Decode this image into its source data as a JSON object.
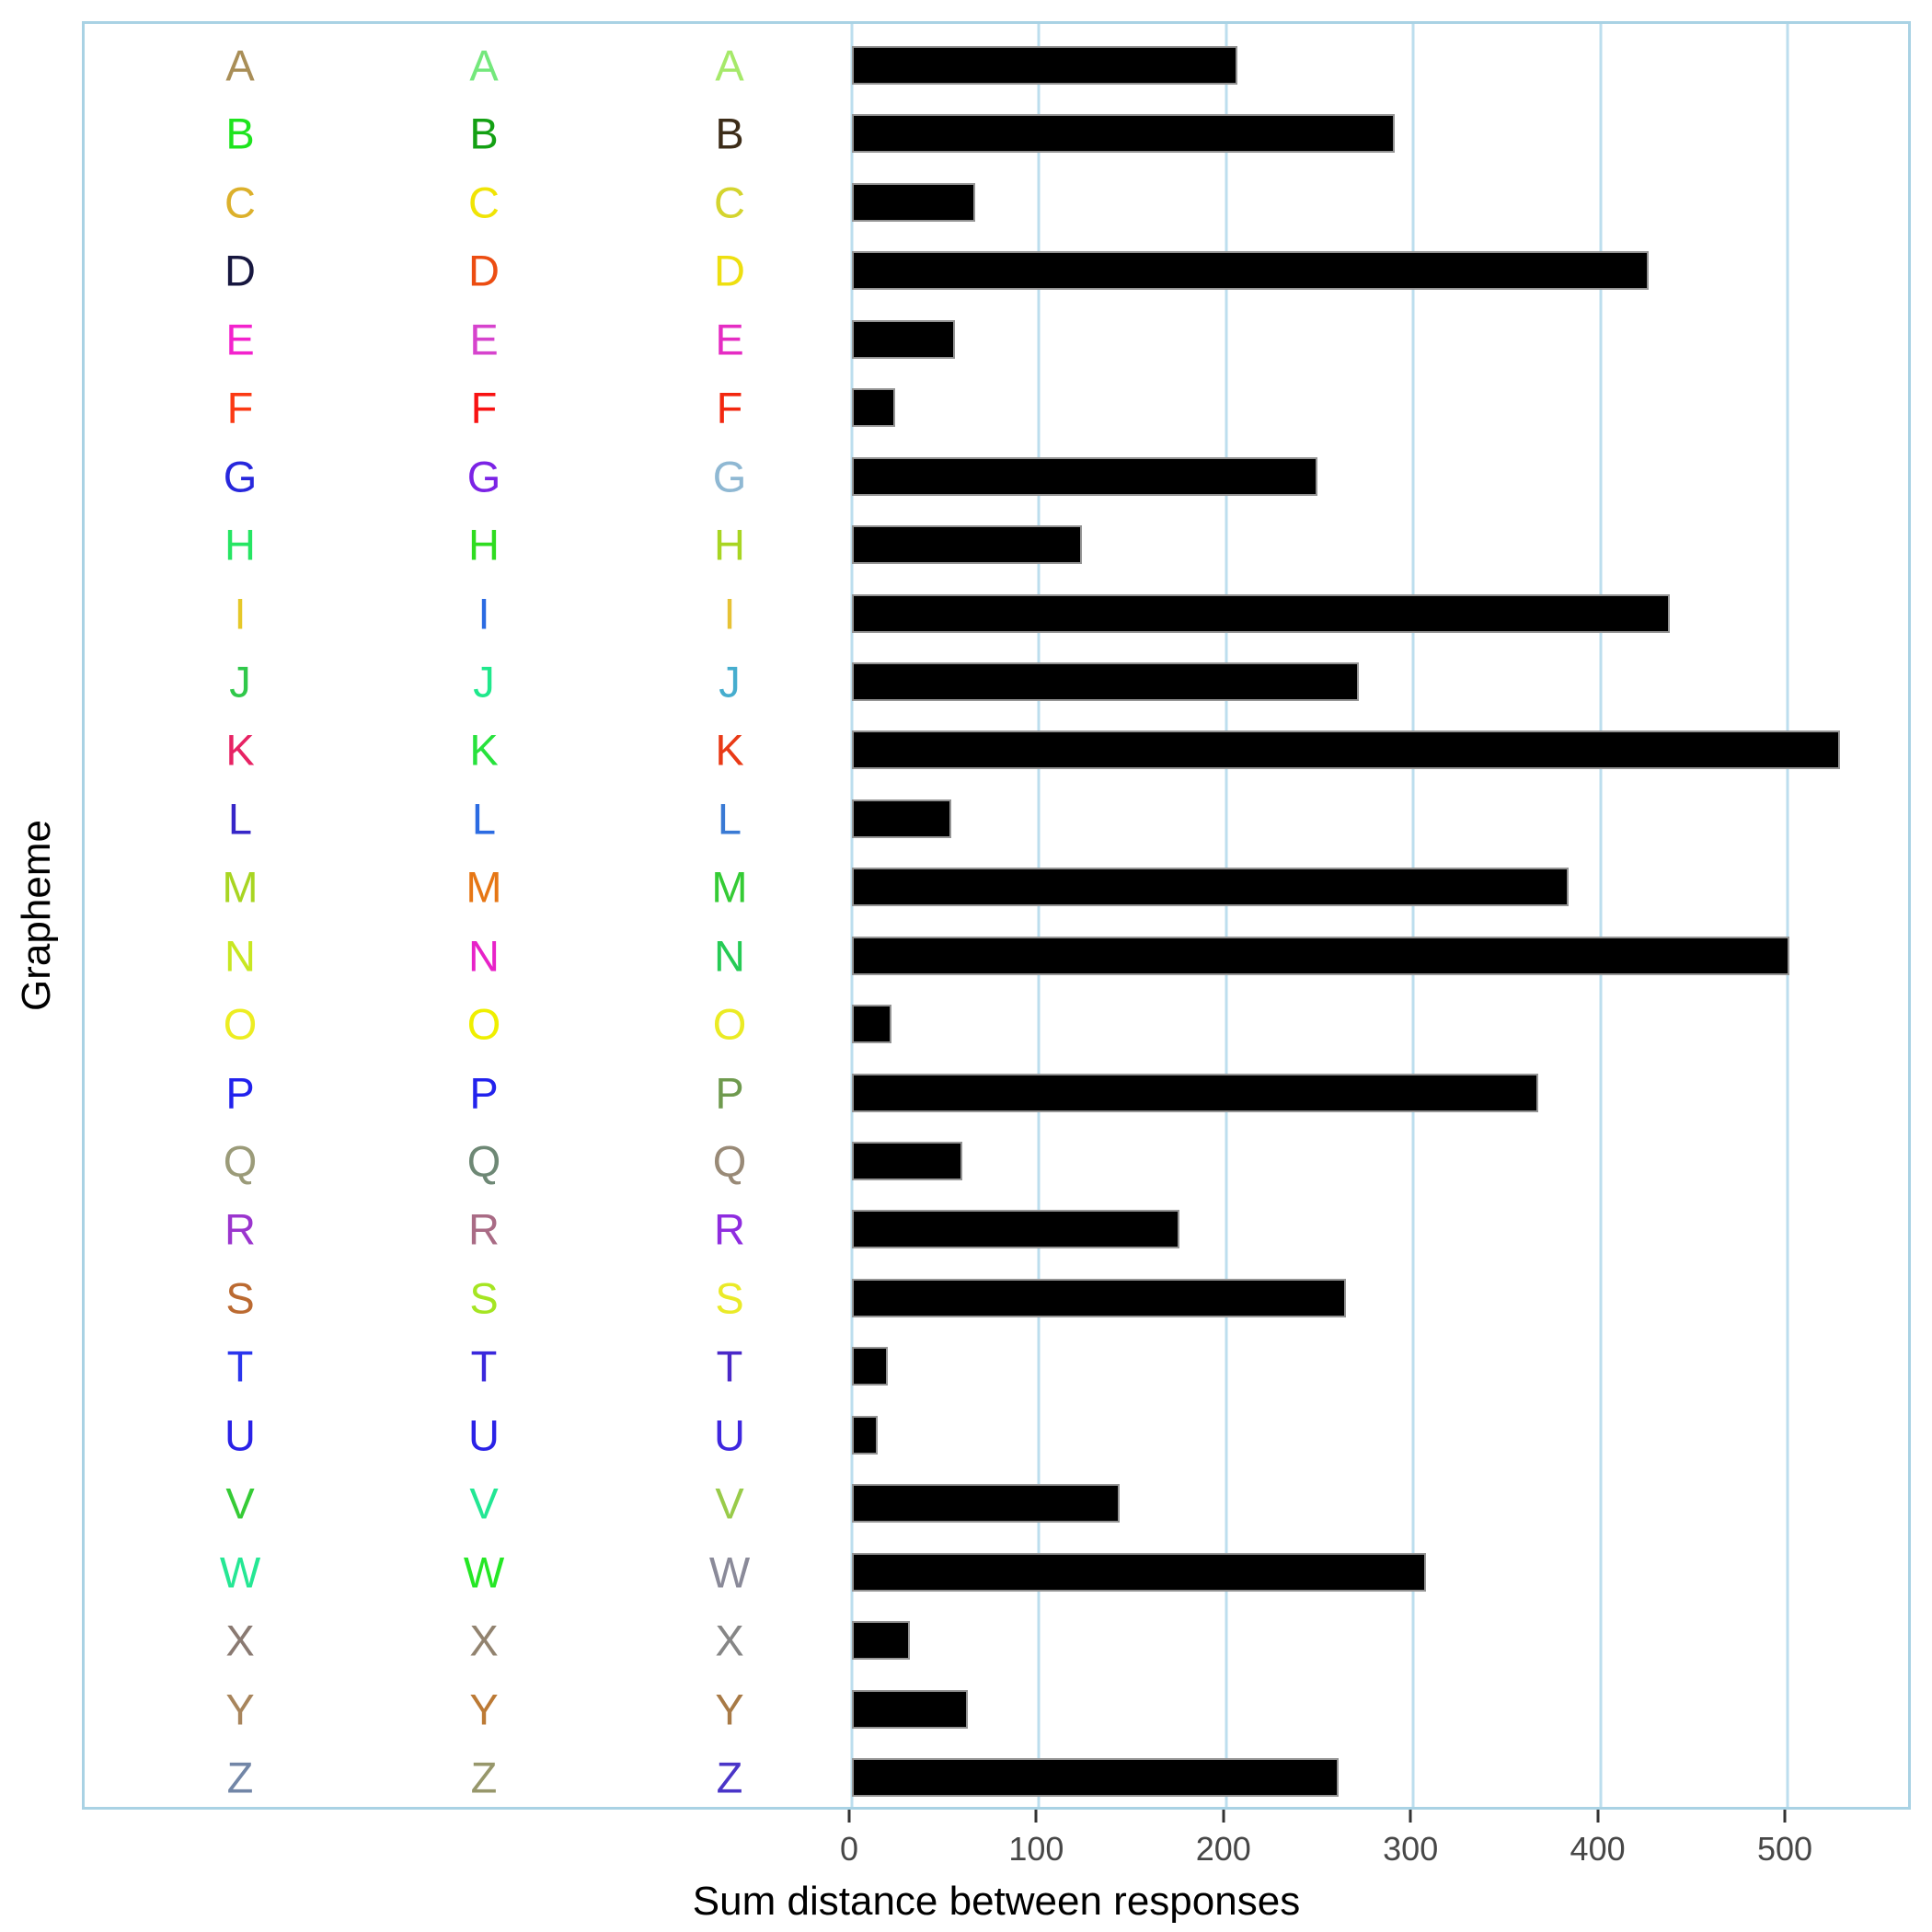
{
  "chart_data": {
    "type": "bar",
    "orientation": "horizontal",
    "title": "",
    "xlabel": "Sum distance between responses",
    "ylabel": "Grapheme",
    "categories": [
      "A",
      "B",
      "C",
      "D",
      "E",
      "F",
      "G",
      "H",
      "I",
      "J",
      "K",
      "L",
      "M",
      "N",
      "O",
      "P",
      "Q",
      "R",
      "S",
      "T",
      "U",
      "V",
      "W",
      "X",
      "Y",
      "Z"
    ],
    "values": [
      206,
      290,
      66,
      426,
      55,
      23,
      249,
      123,
      437,
      271,
      528,
      53,
      383,
      501,
      21,
      367,
      59,
      175,
      264,
      19,
      14,
      143,
      307,
      31,
      62,
      260
    ],
    "x_ticks": [
      0,
      100,
      200,
      300,
      400,
      500
    ],
    "x_tick_labels": [
      "0",
      "100",
      "200",
      "300",
      "400",
      "500"
    ],
    "xlim": [
      0,
      567
    ],
    "grid": "vertical",
    "legend": "none",
    "bar_color": "#000000",
    "bar_border_color": "#949494",
    "gridline_color": "#bcdeee",
    "panel_border_color": "#a9d2e4",
    "tick_color": "#333333",
    "tick_label_color": "#474747",
    "letter_columns": 3,
    "letter_colors": [
      [
        "#a98e57",
        "#74e87c",
        "#a6e96a"
      ],
      [
        "#1ee41e",
        "#13a013",
        "#3c2c18"
      ],
      [
        "#dcb02b",
        "#f0e405",
        "#d4d42e"
      ],
      [
        "#17173f",
        "#ec4d12",
        "#eedf10"
      ],
      [
        "#f322cd",
        "#d643cd",
        "#e52cc3"
      ],
      [
        "#fb3a14",
        "#f81212",
        "#f2270f"
      ],
      [
        "#2727dc",
        "#7b23e5",
        "#8fb8d3"
      ],
      [
        "#26e563",
        "#2fdc20",
        "#a8d522"
      ],
      [
        "#e6c829",
        "#2b6be2",
        "#e7c235"
      ],
      [
        "#30c84a",
        "#1fe88c",
        "#46adce"
      ],
      [
        "#e72364",
        "#27e23c",
        "#e93a16"
      ],
      [
        "#3626c8",
        "#2b6be2",
        "#3a7ad4"
      ],
      [
        "#a8d522",
        "#e67614",
        "#35cb35"
      ],
      [
        "#c8e722",
        "#e722c8",
        "#26cb55"
      ],
      [
        "#eded22",
        "#efef00",
        "#ebeb24"
      ],
      [
        "#2222ed",
        "#2222ed",
        "#6f9a4e"
      ],
      [
        "#9b9b79",
        "#6e8875",
        "#998a77"
      ],
      [
        "#9b35ce",
        "#a96b85",
        "#8f2cdf"
      ],
      [
        "#bb6a31",
        "#a5e522",
        "#eaea28"
      ],
      [
        "#2a35ed",
        "#3a28dc",
        "#4a28c8"
      ],
      [
        "#2a22e7",
        "#2a22e7",
        "#3e27df"
      ],
      [
        "#36cb36",
        "#22e794",
        "#99cb4a"
      ],
      [
        "#25e794",
        "#25e725",
        "#8a8a99"
      ],
      [
        "#8a7a72",
        "#92836f",
        "#868686"
      ],
      [
        "#a8855c",
        "#bc7a35",
        "#a87a46"
      ],
      [
        "#7286a7",
        "#97976b",
        "#4a35c8"
      ]
    ]
  }
}
